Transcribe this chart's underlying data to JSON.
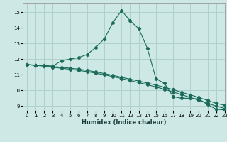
{
  "xlabel": "Humidex (Indice chaleur)",
  "ylabel": "",
  "background_color": "#cde8e5",
  "grid_color": "#afd0cc",
  "line_color": "#1a6b5a",
  "xlim": [
    -0.5,
    23
  ],
  "ylim": [
    8.7,
    15.6
  ],
  "xticks": [
    0,
    1,
    2,
    3,
    4,
    5,
    6,
    7,
    8,
    9,
    10,
    11,
    12,
    13,
    14,
    15,
    16,
    17,
    18,
    19,
    20,
    21,
    22,
    23
  ],
  "yticks": [
    9,
    10,
    11,
    12,
    13,
    14,
    15
  ],
  "curve1_x": [
    0,
    1,
    2,
    3,
    4,
    5,
    6,
    7,
    8,
    9,
    10,
    11,
    12,
    13,
    14,
    15,
    16,
    17,
    18,
    19,
    20,
    21,
    22,
    23
  ],
  "curve1_y": [
    11.65,
    11.6,
    11.6,
    11.55,
    11.9,
    12.0,
    12.1,
    12.3,
    12.75,
    13.3,
    14.35,
    15.1,
    14.45,
    13.95,
    12.7,
    10.75,
    10.45,
    9.6,
    9.5,
    9.5,
    9.45,
    9.1,
    8.8,
    8.75
  ],
  "curve2_x": [
    0,
    1,
    2,
    3,
    4,
    5,
    6,
    7,
    8,
    9,
    10,
    11,
    12,
    13,
    14,
    15,
    16,
    17,
    18,
    19,
    20,
    21,
    22,
    23
  ],
  "curve2_y": [
    11.65,
    11.62,
    11.58,
    11.52,
    11.48,
    11.42,
    11.36,
    11.28,
    11.18,
    11.08,
    10.96,
    10.84,
    10.72,
    10.6,
    10.47,
    10.34,
    10.2,
    10.05,
    9.88,
    9.72,
    9.55,
    9.36,
    9.18,
    9.05
  ],
  "curve3_x": [
    0,
    1,
    2,
    3,
    4,
    5,
    6,
    7,
    8,
    9,
    10,
    11,
    12,
    13,
    14,
    15,
    16,
    17,
    18,
    19,
    20,
    21,
    22,
    23
  ],
  "curve3_y": [
    11.65,
    11.6,
    11.55,
    11.48,
    11.42,
    11.35,
    11.28,
    11.2,
    11.1,
    11.0,
    10.88,
    10.76,
    10.63,
    10.5,
    10.37,
    10.22,
    10.07,
    9.9,
    9.73,
    9.55,
    9.37,
    9.18,
    9.0,
    8.85
  ]
}
